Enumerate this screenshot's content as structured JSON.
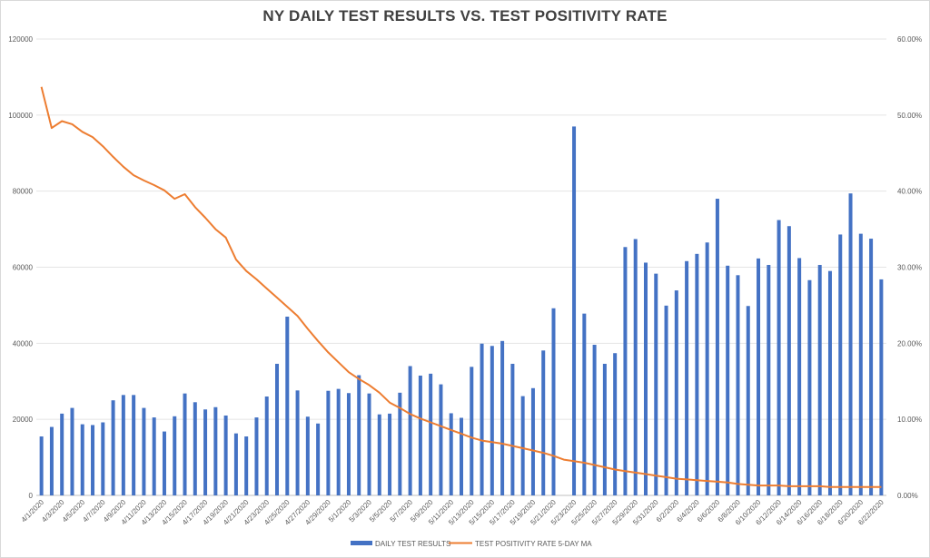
{
  "chart_data": {
    "type": "bar",
    "title": "NY DAILY TEST RESULTS VS. TEST POSITIVITY RATE",
    "xlabel": "",
    "ylabel": "",
    "ylim": [
      0,
      120000
    ],
    "y2lim": [
      0,
      0.6
    ],
    "y_ticks": [
      "0",
      "20000",
      "40000",
      "60000",
      "80000",
      "100000",
      "120000"
    ],
    "y2_ticks": [
      "0.00%",
      "10.00%",
      "20.00%",
      "30.00%",
      "40.00%",
      "50.00%",
      "60.00%"
    ],
    "grid": true,
    "legend_position": "bottom",
    "categories": [
      "4/1/2020",
      "4/2/2020",
      "4/3/2020",
      "4/4/2020",
      "4/5/2020",
      "4/6/2020",
      "4/7/2020",
      "4/8/2020",
      "4/9/2020",
      "4/10/2020",
      "4/11/2020",
      "4/12/2020",
      "4/13/2020",
      "4/14/2020",
      "4/15/2020",
      "4/16/2020",
      "4/17/2020",
      "4/18/2020",
      "4/19/2020",
      "4/20/2020",
      "4/21/2020",
      "4/22/2020",
      "4/23/2020",
      "4/24/2020",
      "4/25/2020",
      "4/26/2020",
      "4/27/2020",
      "4/28/2020",
      "4/29/2020",
      "4/30/2020",
      "5/1/2020",
      "5/2/2020",
      "5/3/2020",
      "5/4/2020",
      "5/5/2020",
      "5/6/2020",
      "5/7/2020",
      "5/8/2020",
      "5/9/2020",
      "5/10/2020",
      "5/11/2020",
      "5/12/2020",
      "5/13/2020",
      "5/14/2020",
      "5/15/2020",
      "5/16/2020",
      "5/17/2020",
      "5/18/2020",
      "5/19/2020",
      "5/20/2020",
      "5/21/2020",
      "5/22/2020",
      "5/23/2020",
      "5/24/2020",
      "5/25/2020",
      "5/26/2020",
      "5/27/2020",
      "5/28/2020",
      "5/29/2020",
      "5/30/2020",
      "5/31/2020",
      "6/1/2020",
      "6/2/2020",
      "6/3/2020",
      "6/4/2020",
      "6/5/2020",
      "6/6/2020",
      "6/7/2020",
      "6/8/2020",
      "6/9/2020",
      "6/10/2020",
      "6/11/2020",
      "6/12/2020",
      "6/13/2020",
      "6/14/2020",
      "6/15/2020",
      "6/16/2020",
      "6/17/2020",
      "6/18/2020",
      "6/19/2020",
      "6/20/2020",
      "6/21/2020",
      "6/22/2020"
    ],
    "x_tick_labels": [
      "4/1/2020",
      "4/3/2020",
      "4/5/2020",
      "4/7/2020",
      "4/9/2020",
      "4/11/2020",
      "4/13/2020",
      "4/15/2020",
      "4/17/2020",
      "4/19/2020",
      "4/21/2020",
      "4/23/2020",
      "4/25/2020",
      "4/27/2020",
      "4/29/2020",
      "5/1/2020",
      "5/3/2020",
      "5/5/2020",
      "5/7/2020",
      "5/9/2020",
      "5/11/2020",
      "5/13/2020",
      "5/15/2020",
      "5/17/2020",
      "5/19/2020",
      "5/21/2020",
      "5/23/2020",
      "5/25/2020",
      "5/27/2020",
      "5/29/2020",
      "5/31/2020",
      "6/2/2020",
      "6/4/2020",
      "6/6/2020",
      "6/8/2020",
      "6/10/2020",
      "6/12/2020",
      "6/14/2020",
      "6/16/2020",
      "6/18/2020",
      "6/20/2020",
      "6/22/2020"
    ],
    "series": [
      {
        "name": "DAILY TEST RESULTS",
        "type": "bar",
        "axis": "left",
        "color": "#4472c4",
        "values": [
          15500,
          18000,
          21500,
          23000,
          18700,
          18500,
          19200,
          25000,
          26400,
          26400,
          23000,
          20500,
          16800,
          20800,
          26800,
          24500,
          22600,
          23200,
          21000,
          16300,
          15500,
          20500,
          26000,
          34600,
          47000,
          27600,
          20700,
          18900,
          27500,
          28000,
          26900,
          31600,
          26800,
          21300,
          21500,
          27000,
          34000,
          31500,
          32000,
          29200,
          21600,
          20400,
          33800,
          39900,
          39300,
          40600,
          34600,
          26100,
          28200,
          38100,
          49200,
          0,
          97000,
          47800,
          39600,
          34600,
          37400,
          65300,
          67400,
          61200,
          58300,
          49900,
          53900,
          61600,
          63500,
          66500,
          78000,
          60400,
          57900,
          49800,
          62300,
          60600,
          72400,
          70800,
          62400,
          56600,
          60600,
          59000,
          68600,
          79400,
          68800,
          67500,
          56800
        ]
      },
      {
        "name": "TEST POSITIVITY RATE 5-DAY MA",
        "type": "line",
        "axis": "right",
        "color": "#ed7d31",
        "values": [
          0.537,
          0.483,
          0.492,
          0.488,
          0.478,
          0.471,
          0.459,
          0.445,
          0.432,
          0.421,
          0.414,
          0.408,
          0.401,
          0.39,
          0.396,
          0.379,
          0.365,
          0.35,
          0.339,
          0.31,
          0.295,
          0.284,
          0.272,
          0.26,
          0.248,
          0.236,
          0.219,
          0.203,
          0.188,
          0.175,
          0.162,
          0.153,
          0.145,
          0.135,
          0.122,
          0.115,
          0.107,
          0.101,
          0.096,
          0.091,
          0.086,
          0.081,
          0.076,
          0.072,
          0.07,
          0.068,
          0.065,
          0.062,
          0.059,
          0.056,
          0.052,
          0.047,
          0.045,
          0.043,
          0.04,
          0.037,
          0.034,
          0.032,
          0.03,
          0.028,
          0.026,
          0.024,
          0.022,
          0.021,
          0.02,
          0.019,
          0.018,
          0.017,
          0.015,
          0.014,
          0.013,
          0.013,
          0.013,
          0.012,
          0.012,
          0.012,
          0.012,
          0.011,
          0.011,
          0.011,
          0.011,
          0.011,
          0.011
        ]
      }
    ]
  }
}
